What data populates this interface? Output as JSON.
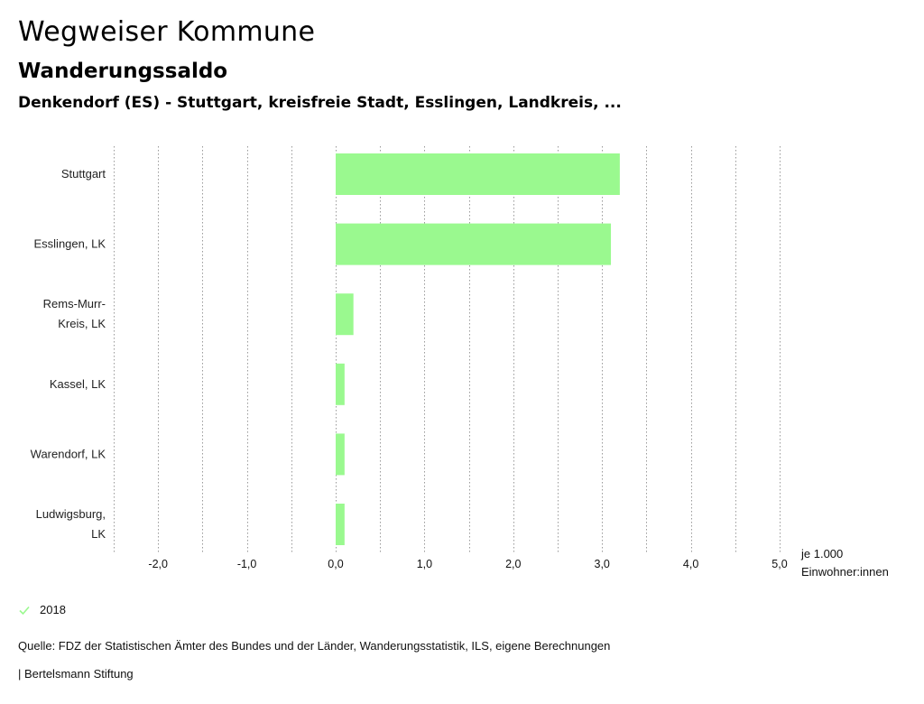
{
  "header": {
    "title": "Wegweiser Kommune",
    "subtitle": "Wanderungssaldo",
    "region": "Denkendorf (ES) - Stuttgart, kreisfreie Stadt, Esslingen, Landkreis, ..."
  },
  "chart_data": {
    "type": "bar",
    "orientation": "horizontal",
    "categories": [
      "Stuttgart",
      "Esslingen, LK",
      "Rems-Murr-Kreis, LK",
      "Kassel, LK",
      "Warendorf, LK",
      "Ludwigsburg, LK"
    ],
    "category_lines": [
      [
        "Stuttgart"
      ],
      [
        "Esslingen, LK"
      ],
      [
        "Rems-Murr-",
        "Kreis, LK"
      ],
      [
        "Kassel, LK"
      ],
      [
        "Warendorf, LK"
      ],
      [
        "Ludwigsburg,",
        "LK"
      ]
    ],
    "series": [
      {
        "name": "2018",
        "values": [
          3.2,
          3.1,
          0.2,
          0.1,
          0.1,
          0.1
        ],
        "color": "#9af98f"
      }
    ],
    "xlim": [
      -2.5,
      5.0
    ],
    "ticks": [
      -2.0,
      -1.0,
      0.0,
      1.0,
      2.0,
      3.0,
      4.0,
      5.0
    ],
    "tick_labels": [
      "-2,0",
      "-1,0",
      "0,0",
      "1,0",
      "2,0",
      "3,0",
      "4,0",
      "5,0"
    ],
    "grid_step": 0.5,
    "grid": true,
    "unit_label": [
      "je 1.000",
      "Einwohner:innen"
    ],
    "legend_position": "bottom-left"
  },
  "legend": {
    "label": "2018",
    "color": "#9af98f"
  },
  "footer": {
    "source": "Quelle: FDZ der Statistischen Ämter des Bundes und der Länder, Wanderungsstatistik, ILS, eigene Berechnungen",
    "credit": "| Bertelsmann Stiftung"
  }
}
